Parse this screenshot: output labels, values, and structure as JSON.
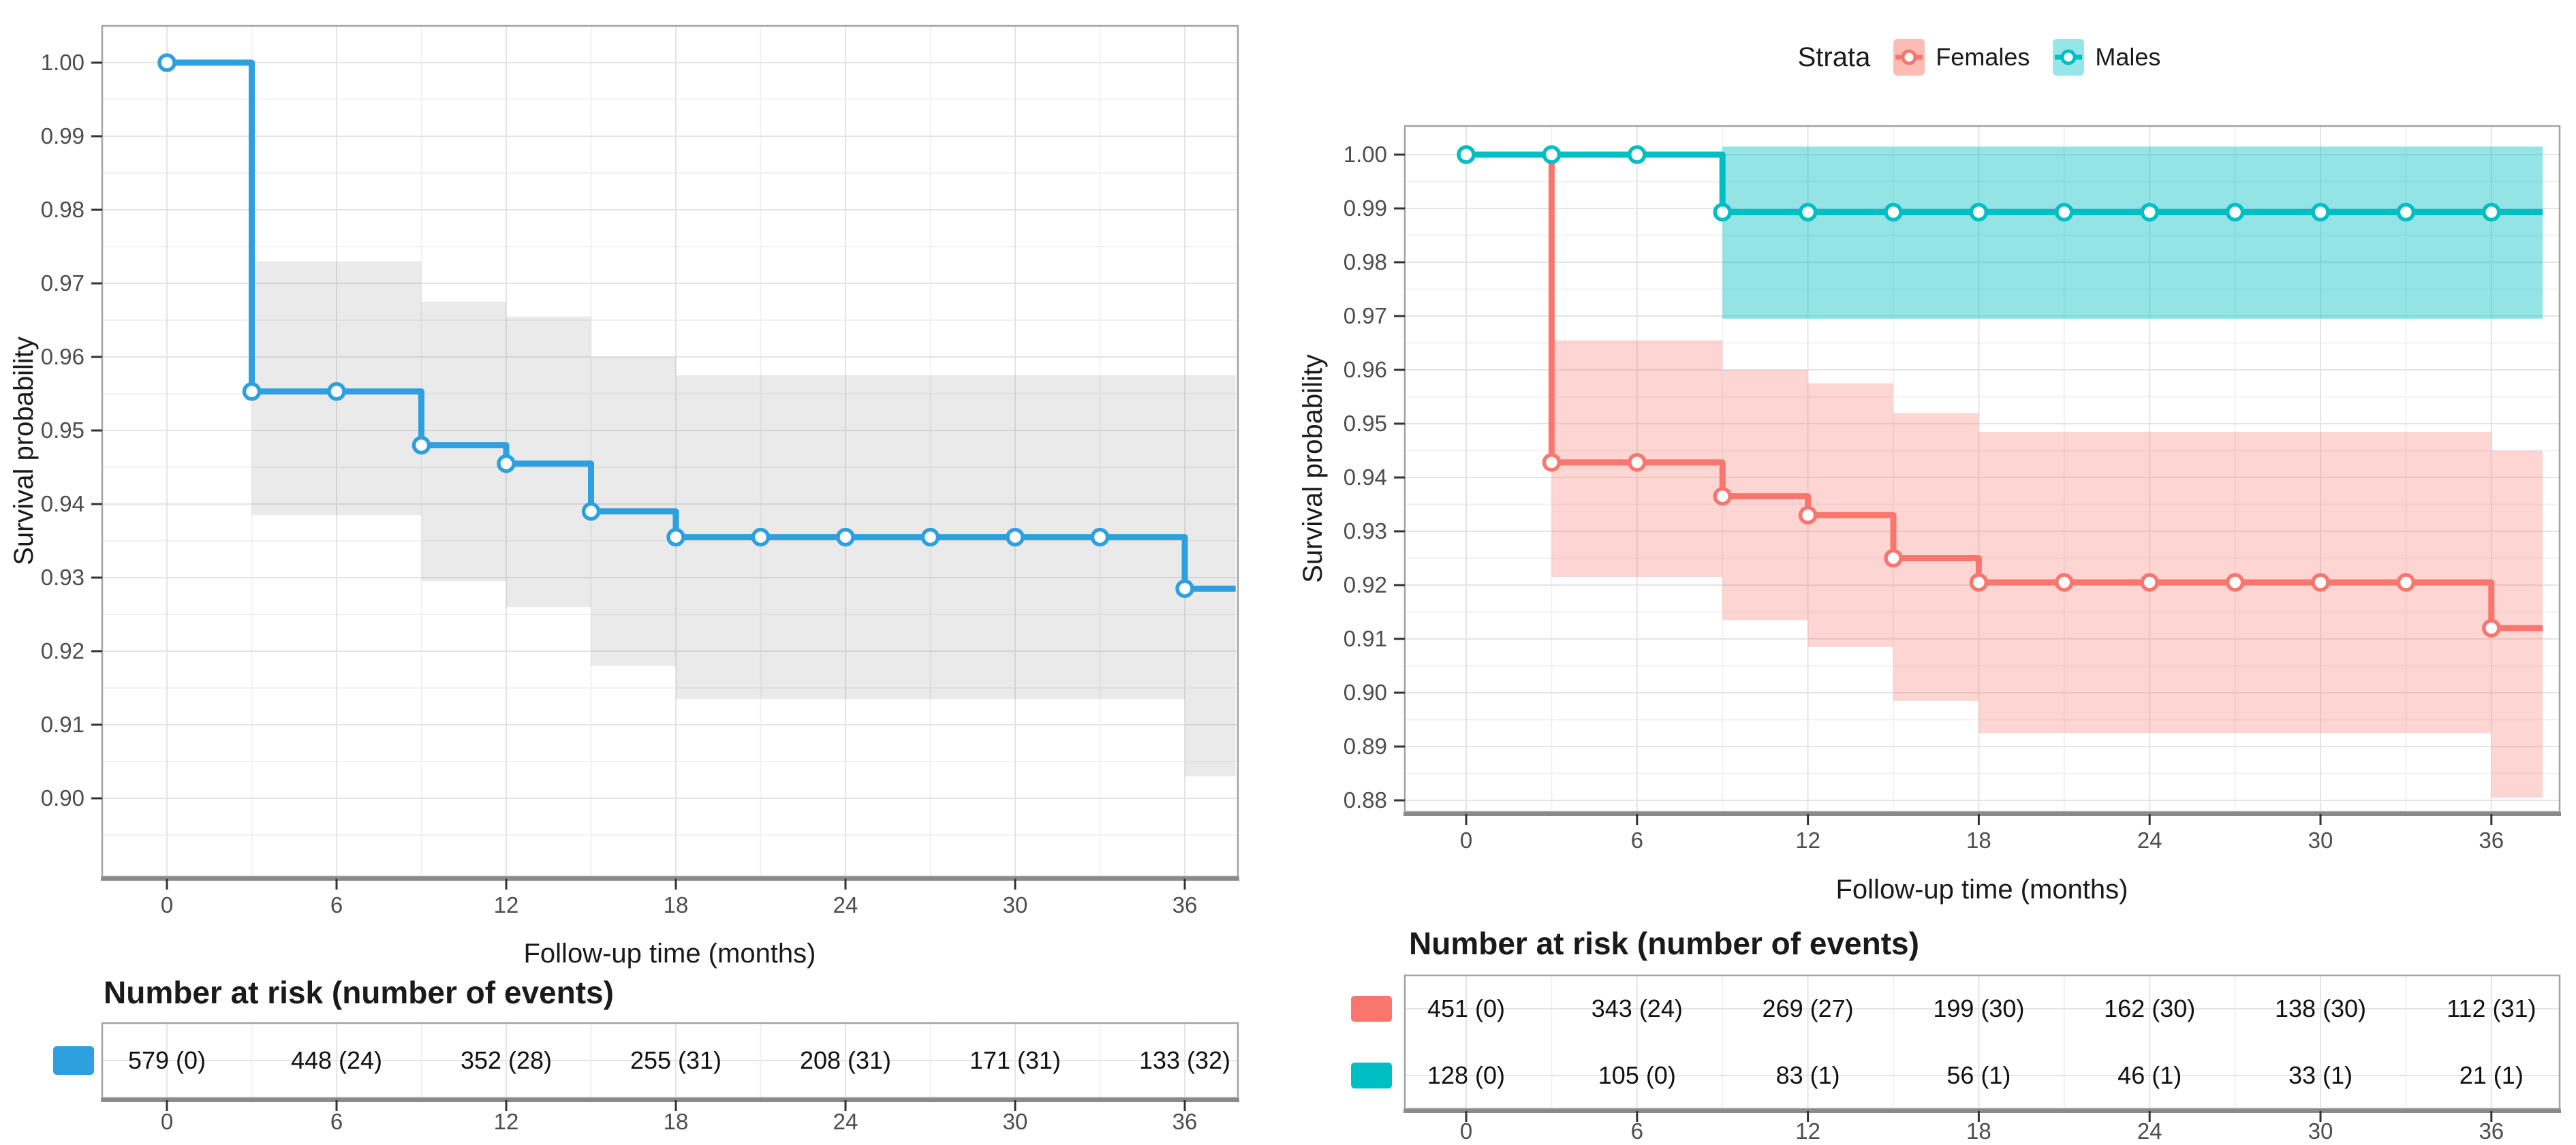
{
  "colors": {
    "blue": "#2E9FDF",
    "salmon": "#F8766D",
    "teal": "#00BFC4",
    "grid_major": "#E4E4E4",
    "grid_minor": "#F1F1F1",
    "panel_border": "#A3A3A3",
    "axis_bottom_bar": "#8A8A8A",
    "axis_text": "#4D4D4D",
    "text": "#111111"
  },
  "chart_data": [
    {
      "type": "line",
      "subtype": "kaplan-meier-step",
      "panel": "left",
      "title": "",
      "xlabel": "Follow-up time (months)",
      "ylabel": "Survival probability",
      "xticks": [
        0,
        6,
        12,
        18,
        24,
        30,
        36
      ],
      "xtick_labels": [
        "0",
        "6",
        "12",
        "18",
        "24",
        "30",
        "36"
      ],
      "xminor": [
        3,
        9,
        15,
        21,
        27,
        33
      ],
      "yticks": [
        1.0,
        0.99,
        0.98,
        0.97,
        0.96,
        0.95,
        0.94,
        0.93,
        0.92,
        0.91,
        0.9
      ],
      "ylim": [
        0.889,
        1.005
      ],
      "xlim": [
        -2.3,
        38.2
      ],
      "grid": true,
      "legend": null,
      "series": [
        {
          "id": "overall",
          "color": "#2E9FDF",
          "band_color": "#7F7F7F",
          "band_opacity": 0.16,
          "steps": [
            [
              0,
              1.0
            ],
            [
              3,
              0.9553
            ],
            [
              9,
              0.948
            ],
            [
              12,
              0.9455
            ],
            [
              15,
              0.939
            ],
            [
              18,
              0.9355
            ],
            [
              36,
              0.9285
            ]
          ],
          "end_x": 37.8,
          "censor_marks_x": [
            0,
            3,
            6,
            9,
            12,
            15,
            18,
            21,
            24,
            27,
            30,
            33,
            36
          ],
          "ci_steps": [
            [
              3,
              0.973,
              0.9385
            ],
            [
              9,
              0.9675,
              0.9295
            ],
            [
              12,
              0.9655,
              0.926
            ],
            [
              15,
              0.96,
              0.918
            ],
            [
              18,
              0.9575,
              0.9135
            ],
            [
              36,
              0.9575,
              0.903
            ]
          ],
          "ci_end_x": 37.8
        }
      ],
      "risk_table": {
        "title": "Number at risk (number of events)",
        "rows": [
          {
            "series": "overall",
            "color": "#2E9FDF",
            "values": [
              "579 (0)",
              "448 (24)",
              "352 (28)",
              "255 (31)",
              "208 (31)",
              "171 (31)",
              "133 (32)"
            ]
          }
        ],
        "tick_labels": [
          "0",
          "6",
          "12",
          "18",
          "24",
          "30",
          "36"
        ]
      }
    },
    {
      "type": "line",
      "subtype": "kaplan-meier-step",
      "panel": "right",
      "title": "",
      "xlabel": "Follow-up time (months)",
      "ylabel": "Survival probability",
      "xticks": [
        0,
        6,
        12,
        18,
        24,
        30,
        36
      ],
      "xtick_labels": [
        "0",
        "6",
        "12",
        "18",
        "24",
        "30",
        "36"
      ],
      "xminor": [
        3,
        9,
        15,
        21,
        27,
        33
      ],
      "yticks": [
        1.0,
        0.99,
        0.98,
        0.97,
        0.96,
        0.95,
        0.94,
        0.93,
        0.92,
        0.91,
        0.9,
        0.89,
        0.88
      ],
      "ylim": [
        0.873,
        1.006
      ],
      "xlim": [
        -2.3,
        38.2
      ],
      "grid": true,
      "legend": {
        "title": "Strata",
        "entries": [
          {
            "label": "Females",
            "color": "#F8766D",
            "key_fill": "#FBBCB6"
          },
          {
            "label": "Males",
            "color": "#00BFC4",
            "key_fill": "#94E6E9"
          }
        ]
      },
      "series": [
        {
          "id": "females",
          "color": "#F8766D",
          "band_color": "#F8766D",
          "band_opacity": 0.3,
          "steps": [
            [
              0,
              1.0
            ],
            [
              3,
              0.9428
            ],
            [
              9,
              0.9365
            ],
            [
              12,
              0.933
            ],
            [
              15,
              0.925
            ],
            [
              18,
              0.9205
            ],
            [
              36,
              0.912
            ]
          ],
          "end_x": 37.8,
          "censor_marks_x": [
            0,
            3,
            6,
            9,
            12,
            15,
            18,
            21,
            24,
            27,
            30,
            33,
            36
          ],
          "ci_steps": [
            [
              3,
              0.9655,
              0.9215
            ],
            [
              9,
              0.96,
              0.9135
            ],
            [
              12,
              0.9575,
              0.9085
            ],
            [
              15,
              0.952,
              0.8985
            ],
            [
              18,
              0.9485,
              0.8925
            ],
            [
              36,
              0.945,
              0.8805
            ]
          ],
          "ci_end_x": 37.8
        },
        {
          "id": "males",
          "color": "#00BFC4",
          "band_color": "#00BFC4",
          "band_opacity": 0.42,
          "steps": [
            [
              0,
              1.0
            ],
            [
              9,
              0.9893
            ]
          ],
          "end_x": 37.8,
          "censor_marks_x": [
            0,
            3,
            6,
            9,
            12,
            15,
            18,
            21,
            24,
            27,
            30,
            33,
            36
          ],
          "ci_steps": [
            [
              9,
              1.0015,
              0.9695
            ]
          ],
          "ci_end_x": 37.8
        }
      ],
      "risk_table": {
        "title": "Number at risk (number of events)",
        "rows": [
          {
            "series": "females",
            "color": "#F8766D",
            "values": [
              "451 (0)",
              "343 (24)",
              "269 (27)",
              "199 (30)",
              "162 (30)",
              "138 (30)",
              "112 (31)"
            ]
          },
          {
            "series": "males",
            "color": "#00BFC4",
            "values": [
              "128 (0)",
              "105 (0)",
              "83 (1)",
              "56 (1)",
              "46 (1)",
              "33 (1)",
              "21 (1)"
            ]
          }
        ],
        "tick_labels": [
          "0",
          "6",
          "12",
          "18",
          "24",
          "30",
          "36"
        ]
      }
    }
  ]
}
